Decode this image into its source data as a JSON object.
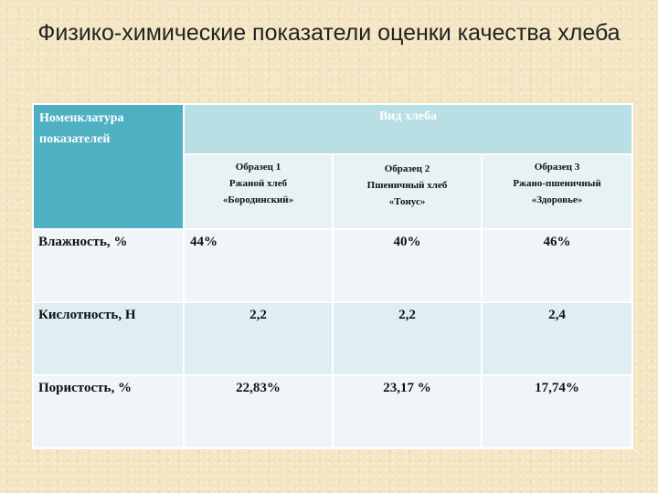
{
  "title": "Физико-химические показатели оценки качества хлеба",
  "table": {
    "header_left": "Номенклатура показателей",
    "header_top": "Вид хлеба",
    "samples": [
      {
        "line1": "Образец 1",
        "line2": "Ржаной хлеб",
        "line3": "«Бородинский»"
      },
      {
        "line1": "Образец  2",
        "line2": "Пшеничный хлеб",
        "line3": "«Тонус»"
      },
      {
        "line1": "Образец  3",
        "line2": "Ржано-пшеничный",
        "line3": "«Здоровье»"
      }
    ],
    "rows": [
      {
        "label": "Влажность, %",
        "values": [
          "44%",
          "40%",
          "46%"
        ]
      },
      {
        "label": "Кислотность, Н",
        "values": [
          "2,2",
          "2,2",
          "2,4"
        ]
      },
      {
        "label": "Пористость, %",
        "values": [
          "22,83%",
          "23,17 %",
          "17,74%"
        ]
      }
    ]
  }
}
